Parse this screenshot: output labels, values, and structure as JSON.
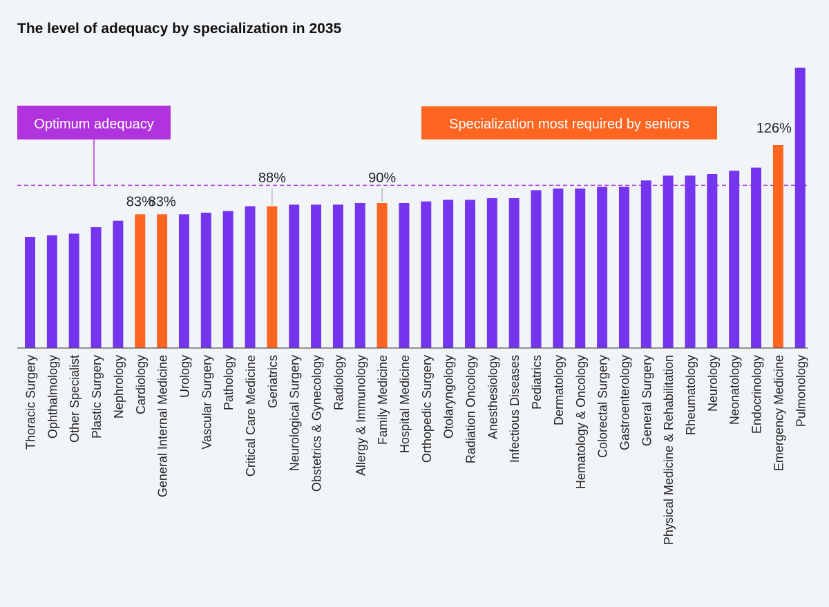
{
  "chart_data": {
    "type": "bar",
    "title": "The level of adequacy by specialization in 2035",
    "categories": [
      "Thoracic Surgery",
      "Ophthalmology",
      "Other Specialist",
      "Plastic Surgery",
      "Nephrology",
      "Cardiology",
      "General Internal Medicine",
      "Urology",
      "Vascular Surgery",
      "Pathology",
      "Critical Care Medicine",
      "Geriatrics",
      "Neurological Surgery",
      "Obstetrics & Gynecology",
      "Radiology",
      "Allergy & Immunology",
      "Family Medicine",
      "Hospital Medicine",
      "Orthopedic Surgery",
      "Otolaryngology",
      "Radiation Oncology",
      "Anesthesiology",
      "Infectious Diseases",
      "Pediatrics",
      "Dermatology",
      "Hematology & Oncology",
      "Colorectal Surgery",
      "Gastroenterology",
      "General Surgery",
      "Physical Medicine & Rehabilitation",
      "Rheumatology",
      "Neurology",
      "Neonatology",
      "Endocrinology",
      "Emergency Medicine",
      "Pulmonology"
    ],
    "values": [
      69,
      70,
      71,
      75,
      79,
      83,
      83,
      83,
      84,
      85,
      88,
      88,
      89,
      89,
      89,
      90,
      90,
      90,
      91,
      92,
      92,
      93,
      93,
      98,
      99,
      99,
      100,
      100,
      104,
      107,
      107,
      108,
      110,
      112,
      126,
      174
    ],
    "highlighted": [
      5,
      6,
      11,
      16,
      34
    ],
    "value_labels": [
      {
        "index": 5,
        "text": "83%"
      },
      {
        "index": 6,
        "text": "83%"
      },
      {
        "index": 11,
        "text": "88%"
      },
      {
        "index": 16,
        "text": "90%"
      },
      {
        "index": 34,
        "text": "126%"
      }
    ],
    "reference_line": {
      "value": 101,
      "label": "Optimum adequacy"
    },
    "highlight_legend": "Specialization most required by seniors",
    "ylim": [
      0,
      174
    ],
    "grid": false,
    "colors": {
      "bar": "#7535ee",
      "highlight": "#fd6520",
      "optimum_box": "#b133de",
      "optimum_line": "#b133de",
      "leader": "#aaaaaa",
      "axis": "#555555"
    }
  }
}
